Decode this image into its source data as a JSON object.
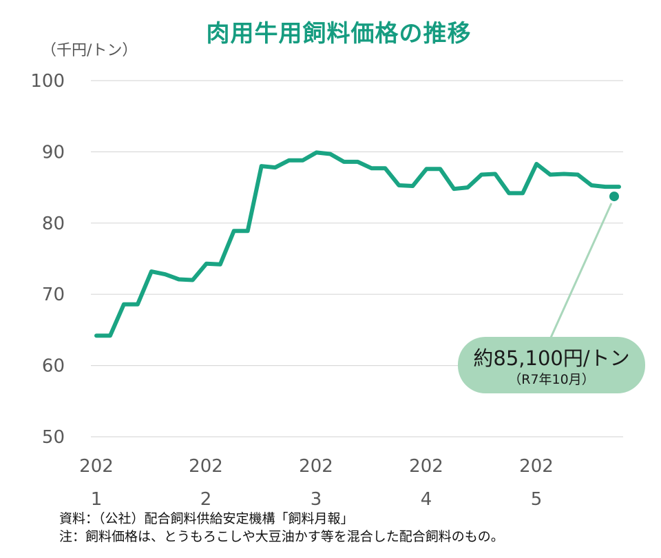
{
  "chart_data": {
    "type": "line",
    "title": "肉用牛用飼料価格の推移",
    "ylabel": "（千円/トン）",
    "ylim": [
      50,
      100
    ],
    "yticks": [
      50,
      60,
      70,
      80,
      90,
      100
    ],
    "grid": true,
    "x_tick_labels": [
      {
        "top": "202",
        "bottom": "1"
      },
      {
        "top": "202",
        "bottom": "2"
      },
      {
        "top": "202",
        "bottom": "3"
      },
      {
        "top": "202",
        "bottom": "4"
      },
      {
        "top": "202",
        "bottom": "5"
      }
    ],
    "series": [
      {
        "color": "#1aa483",
        "values": [
          64.2,
          64.2,
          68.6,
          68.6,
          73.2,
          72.8,
          72.1,
          72.0,
          74.3,
          74.2,
          78.9,
          78.9,
          88.0,
          87.8,
          88.8,
          88.8,
          89.9,
          89.7,
          88.6,
          88.6,
          87.7,
          87.7,
          85.3,
          85.2,
          87.6,
          87.6,
          84.8,
          85.0,
          86.8,
          86.9,
          84.2,
          84.2,
          88.3,
          86.8,
          86.9,
          86.8,
          85.3,
          85.1,
          85.1
        ]
      }
    ],
    "highlight_point": {
      "value": 85.1,
      "color": "#169c80"
    },
    "annotation": {
      "main": "約85,100円/トン",
      "sub": "（R7年10月）",
      "color": "#a9d7bb"
    }
  },
  "notes": [
    "資料：（公社）配合飼料供給安定機構「飼料月報」",
    "注：飼料価格は、とうもろこしや大豆油かす等を混合した配合飼料のもの。"
  ]
}
